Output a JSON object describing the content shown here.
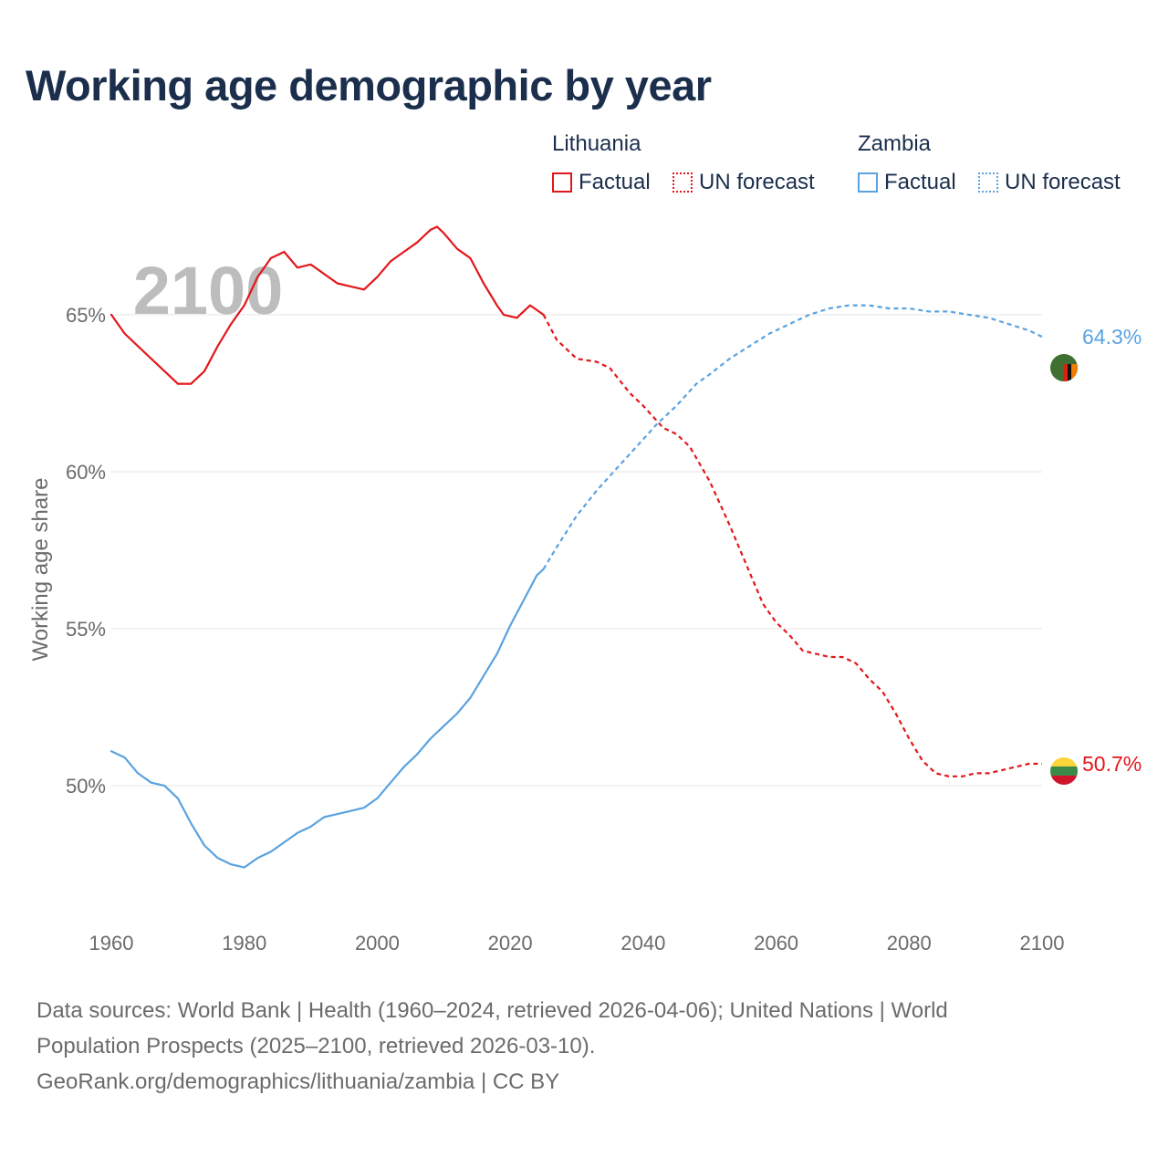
{
  "title": "Working age demographic by year",
  "legend": {
    "lithuania": {
      "name": "Lithuania",
      "factual": "Factual",
      "forecast": "UN forecast"
    },
    "zambia": {
      "name": "Zambia",
      "factual": "Factual",
      "forecast": "UN forecast"
    }
  },
  "footer": {
    "line1": "Data sources: World Bank | Health (1960–2024, retrieved 2026-04-06); United Nations | World",
    "line2": "Population Prospects (2025–2100, retrieved 2026-03-10).",
    "line3": "GeoRank.org/demographics/lithuania/zambia | CC BY"
  },
  "chart_data": {
    "type": "line",
    "title": "Working age demographic by year",
    "xlabel": "",
    "ylabel": "Working age share",
    "xlim": [
      1960,
      2100
    ],
    "ylim": [
      45.5,
      69.5
    ],
    "x_ticks": [
      1960,
      1980,
      2000,
      2020,
      2040,
      2060,
      2080,
      2100
    ],
    "y_ticks": [
      50,
      55,
      60,
      65
    ],
    "y_tick_labels": [
      "50%",
      "55%",
      "60%",
      "65%"
    ],
    "year_label": "2100",
    "grid": true,
    "colors": {
      "lithuania": "#e3171b",
      "zambia": "#5aa2e0"
    },
    "series": [
      {
        "name": "Lithuania",
        "color": "#e3171b",
        "end_label": "50.7%",
        "factual": [
          [
            1960,
            65.0
          ],
          [
            1962,
            64.4
          ],
          [
            1964,
            64.0
          ],
          [
            1966,
            63.6
          ],
          [
            1968,
            63.2
          ],
          [
            1970,
            62.8
          ],
          [
            1972,
            62.8
          ],
          [
            1974,
            63.2
          ],
          [
            1976,
            64.0
          ],
          [
            1978,
            64.7
          ],
          [
            1980,
            65.3
          ],
          [
            1982,
            66.2
          ],
          [
            1984,
            66.8
          ],
          [
            1986,
            67.0
          ],
          [
            1988,
            66.5
          ],
          [
            1990,
            66.6
          ],
          [
            1992,
            66.3
          ],
          [
            1994,
            66.0
          ],
          [
            1996,
            65.9
          ],
          [
            1998,
            65.8
          ],
          [
            2000,
            66.2
          ],
          [
            2002,
            66.7
          ],
          [
            2004,
            67.0
          ],
          [
            2006,
            67.3
          ],
          [
            2008,
            67.7
          ],
          [
            2009,
            67.8
          ],
          [
            2010,
            67.6
          ],
          [
            2012,
            67.1
          ],
          [
            2014,
            66.8
          ],
          [
            2016,
            66.0
          ],
          [
            2018,
            65.3
          ],
          [
            2019,
            65.0
          ],
          [
            2021,
            64.9
          ],
          [
            2023,
            65.3
          ],
          [
            2025,
            65.0
          ]
        ],
        "forecast": [
          [
            2025,
            65.0
          ],
          [
            2027,
            64.2
          ],
          [
            2030,
            63.6
          ],
          [
            2033,
            63.5
          ],
          [
            2035,
            63.3
          ],
          [
            2038,
            62.5
          ],
          [
            2040,
            62.1
          ],
          [
            2043,
            61.4
          ],
          [
            2045,
            61.2
          ],
          [
            2047,
            60.8
          ],
          [
            2050,
            59.7
          ],
          [
            2053,
            58.3
          ],
          [
            2056,
            56.8
          ],
          [
            2058,
            55.8
          ],
          [
            2060,
            55.2
          ],
          [
            2062,
            54.8
          ],
          [
            2064,
            54.3
          ],
          [
            2066,
            54.2
          ],
          [
            2068,
            54.1
          ],
          [
            2070,
            54.1
          ],
          [
            2072,
            53.9
          ],
          [
            2074,
            53.4
          ],
          [
            2076,
            53.0
          ],
          [
            2078,
            52.3
          ],
          [
            2080,
            51.5
          ],
          [
            2082,
            50.8
          ],
          [
            2084,
            50.4
          ],
          [
            2086,
            50.3
          ],
          [
            2088,
            50.3
          ],
          [
            2090,
            50.4
          ],
          [
            2092,
            50.4
          ],
          [
            2094,
            50.5
          ],
          [
            2096,
            50.6
          ],
          [
            2098,
            50.7
          ],
          [
            2100,
            50.7
          ]
        ]
      },
      {
        "name": "Zambia",
        "color": "#5aa2e0",
        "end_label": "64.3%",
        "factual": [
          [
            1960,
            51.1
          ],
          [
            1962,
            50.9
          ],
          [
            1964,
            50.4
          ],
          [
            1966,
            50.1
          ],
          [
            1968,
            50.0
          ],
          [
            1970,
            49.6
          ],
          [
            1972,
            48.8
          ],
          [
            1974,
            48.1
          ],
          [
            1976,
            47.7
          ],
          [
            1978,
            47.5
          ],
          [
            1980,
            47.4
          ],
          [
            1982,
            47.7
          ],
          [
            1984,
            47.9
          ],
          [
            1986,
            48.2
          ],
          [
            1988,
            48.5
          ],
          [
            1990,
            48.7
          ],
          [
            1992,
            49.0
          ],
          [
            1994,
            49.1
          ],
          [
            1996,
            49.2
          ],
          [
            1998,
            49.3
          ],
          [
            2000,
            49.6
          ],
          [
            2002,
            50.1
          ],
          [
            2004,
            50.6
          ],
          [
            2006,
            51.0
          ],
          [
            2008,
            51.5
          ],
          [
            2010,
            51.9
          ],
          [
            2012,
            52.3
          ],
          [
            2014,
            52.8
          ],
          [
            2016,
            53.5
          ],
          [
            2018,
            54.2
          ],
          [
            2020,
            55.1
          ],
          [
            2022,
            55.9
          ],
          [
            2024,
            56.7
          ],
          [
            2025,
            56.9
          ]
        ],
        "forecast": [
          [
            2025,
            56.9
          ],
          [
            2027,
            57.6
          ],
          [
            2030,
            58.6
          ],
          [
            2033,
            59.4
          ],
          [
            2036,
            60.1
          ],
          [
            2039,
            60.8
          ],
          [
            2042,
            61.5
          ],
          [
            2045,
            62.1
          ],
          [
            2048,
            62.8
          ],
          [
            2050,
            63.1
          ],
          [
            2053,
            63.6
          ],
          [
            2056,
            64.0
          ],
          [
            2059,
            64.4
          ],
          [
            2062,
            64.7
          ],
          [
            2065,
            65.0
          ],
          [
            2068,
            65.2
          ],
          [
            2071,
            65.3
          ],
          [
            2074,
            65.3
          ],
          [
            2077,
            65.2
          ],
          [
            2080,
            65.2
          ],
          [
            2083,
            65.1
          ],
          [
            2086,
            65.1
          ],
          [
            2089,
            65.0
          ],
          [
            2092,
            64.9
          ],
          [
            2095,
            64.7
          ],
          [
            2098,
            64.5
          ],
          [
            2100,
            64.3
          ]
        ]
      }
    ]
  }
}
